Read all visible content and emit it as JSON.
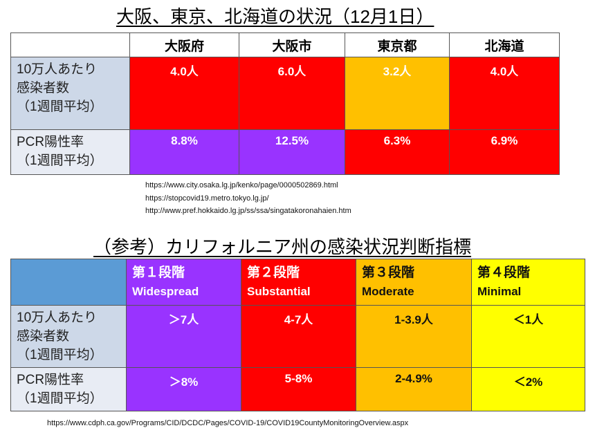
{
  "section1": {
    "title": "大阪、東京、北海道の状況（12月1日）",
    "columns": [
      "大阪府",
      "大阪市",
      "東京都",
      "北海道"
    ],
    "rows": [
      {
        "label": [
          "10万人あたり",
          "感染者数",
          "（1週間平均）"
        ],
        "values": [
          "4.0人",
          "6.0人",
          "3.2人",
          "4.0人"
        ],
        "colors": [
          "#ff0000",
          "#ff0000",
          "#ffc000",
          "#ff0000"
        ]
      },
      {
        "label": [
          "PCR陽性率",
          "（1週間平均）"
        ],
        "values": [
          "8.8%",
          "12.5%",
          "6.3%",
          "6.9%"
        ],
        "colors": [
          "#9933ff",
          "#9933ff",
          "#ff0000",
          "#ff0000"
        ]
      }
    ],
    "sources": [
      "https://www.city.osaka.lg.jp/kenko/page/0000502869.html",
      "https://stopcovid19.metro.tokyo.lg.jp/",
      "http://www.pref.hokkaido.lg.jp/ss/ssa/singatakoronahaien.htm"
    ]
  },
  "section2": {
    "title": "（参考）カリフォルニア州の感染状況判断指標",
    "stages": [
      {
        "name": "第１段階",
        "en": "Widespread",
        "color": "#9933ff"
      },
      {
        "name": "第２段階",
        "en": "Substantial",
        "color": "#ff0000"
      },
      {
        "name": "第３段階",
        "en": "Moderate",
        "color": "#ffc000"
      },
      {
        "name": "第４段階",
        "en": "Minimal",
        "color": "#ffff00"
      }
    ],
    "rows": [
      {
        "label": [
          "10万人あたり",
          "感染者数",
          "（1週間平均）"
        ],
        "values": [
          "＞7人",
          "4-7人",
          "1-3.9人",
          "＜1人"
        ]
      },
      {
        "label": [
          "PCR陽性率",
          "（1週間平均）"
        ],
        "values": [
          "＞8%",
          "5-8%",
          "2-4.9%",
          "＜2%"
        ]
      }
    ],
    "source": "https://www.cdph.ca.gov/Programs/CID/DCDC/Pages/COVID-19/COVID19CountyMonitoringOverview.aspx"
  }
}
